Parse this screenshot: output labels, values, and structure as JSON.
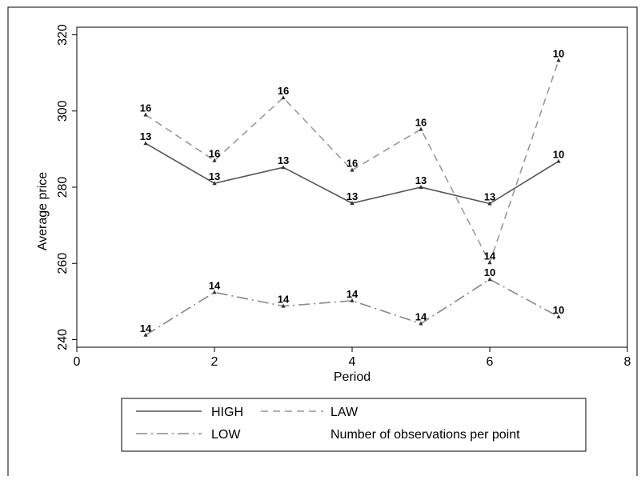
{
  "chart_data": {
    "type": "line",
    "xlabel": "Period",
    "ylabel": "Average price",
    "xlim": [
      0,
      8
    ],
    "ylim": [
      238,
      322
    ],
    "xticks": [
      0,
      2,
      4,
      6,
      8
    ],
    "yticks": [
      240,
      260,
      280,
      300,
      320
    ],
    "grid": false,
    "legend_position": "bottom",
    "series": [
      {
        "name": "HIGH",
        "style": "solid",
        "color": "#555555",
        "x": [
          1,
          2,
          3,
          4,
          5,
          6,
          7
        ],
        "y": [
          291.5,
          281,
          285.2,
          275.8,
          280,
          275.7,
          286.8
        ],
        "labels": [
          "13",
          "13",
          "13",
          "13",
          "13",
          "13",
          "10"
        ]
      },
      {
        "name": "LAW",
        "style": "dashed",
        "color": "#999999",
        "x": [
          1,
          2,
          3,
          4,
          5,
          6,
          7
        ],
        "y": [
          299,
          287,
          303.5,
          284.5,
          295.2,
          260.2,
          313.3
        ],
        "labels": [
          "16",
          "16",
          "16",
          "16",
          "16",
          "14",
          "10"
        ]
      },
      {
        "name": "LOW",
        "style": "dashdot",
        "color": "#888888",
        "x": [
          1,
          2,
          3,
          4,
          5,
          6,
          7
        ],
        "y": [
          241.2,
          252.4,
          248.8,
          250.2,
          244.2,
          255.8,
          246
        ],
        "labels": [
          "14",
          "14",
          "14",
          "14",
          "14",
          "10",
          "10"
        ]
      }
    ],
    "legend": {
      "entries": [
        {
          "label": "HIGH",
          "style": "solid",
          "color": "#555555"
        },
        {
          "label": "LAW",
          "style": "dashed",
          "color": "#999999"
        },
        {
          "label": "LOW",
          "style": "dashdot",
          "color": "#888888"
        },
        {
          "label": "Number of observations per point",
          "style": "none",
          "color": "#000000"
        }
      ]
    }
  }
}
